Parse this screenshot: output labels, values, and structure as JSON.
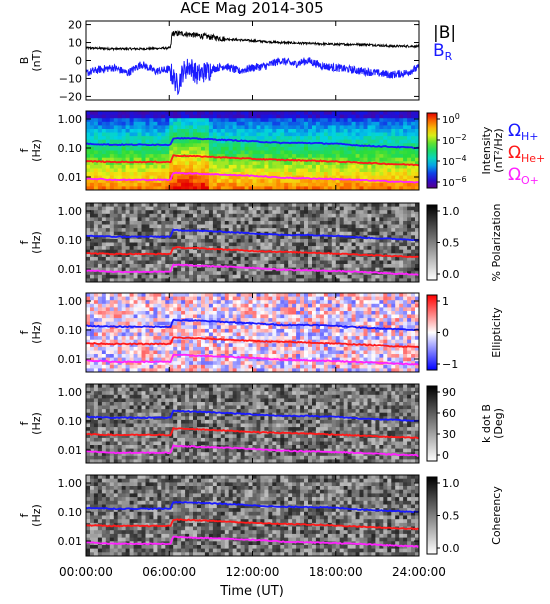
{
  "chart_data": {
    "type": "line",
    "title": "ACE Mag 2014-305",
    "xlabel": "Time (UT)",
    "x_ticks": [
      "00:00:00",
      "06:00:00",
      "12:00:00",
      "18:00:00",
      "24:00:00"
    ],
    "xlim_hours": [
      0,
      24
    ],
    "gyro_frequency_hz": {
      "t_hours": [
        0,
        2,
        4,
        6.1,
        6.3,
        8,
        10,
        12,
        14,
        16,
        18,
        20,
        22,
        24
      ],
      "H+": [
        0.14,
        0.13,
        0.13,
        0.13,
        0.22,
        0.21,
        0.19,
        0.17,
        0.15,
        0.15,
        0.14,
        0.12,
        0.11,
        0.1
      ],
      "He+": [
        0.035,
        0.033,
        0.033,
        0.033,
        0.055,
        0.052,
        0.047,
        0.042,
        0.039,
        0.037,
        0.034,
        0.031,
        0.028,
        0.026
      ],
      "O+": [
        0.009,
        0.008,
        0.008,
        0.008,
        0.014,
        0.013,
        0.012,
        0.011,
        0.0095,
        0.009,
        0.0085,
        0.0078,
        0.007,
        0.0065
      ]
    },
    "field_colors": {
      "H+": "#1a1aff",
      "He+": "#ff1a1a",
      "O+": "#ff22ff"
    },
    "panels": [
      {
        "ylabel": "B",
        "yunit": "(nT)",
        "yticks": [
          "20",
          "10",
          "0",
          "−10",
          "−20"
        ],
        "ylim": [
          -22,
          22
        ],
        "series": [
          {
            "name": "|B|",
            "color": "#000000",
            "t_hours": [
              0,
              2,
              4,
              6.1,
              6.2,
              7,
              8,
              9,
              10,
              12,
              14,
              16,
              18,
              20,
              22,
              24
            ],
            "values": [
              7,
              6.5,
              6.5,
              7,
              15,
              15,
              14,
              13,
              12,
              11,
              10,
              9.5,
              9,
              9,
              8,
              8
            ]
          },
          {
            "name": "B",
            "name_sub": "R",
            "color": "#1a1aff",
            "t_hours": [
              0,
              1,
              2,
              3,
              4,
              5,
              6,
              6.2,
              6.6,
              7,
              7.5,
              8,
              9,
              10,
              11,
              12,
              13,
              14,
              15,
              16,
              17,
              18,
              19,
              20,
              21,
              22,
              23,
              24
            ],
            "values": [
              -7,
              -5,
              -4,
              -7,
              -2,
              -6,
              -5,
              -8,
              -14,
              -6,
              -3,
              -8,
              -5,
              -3,
              -6,
              -4,
              -3,
              0,
              -2,
              0,
              -3,
              -4,
              -5,
              -6,
              -7,
              -8,
              -7,
              -4
            ]
          }
        ]
      },
      {
        "type": "heatmap",
        "ylabel": "f",
        "yunit": "(Hz)",
        "yticks": [
          "1.00",
          "0.10",
          "0.01"
        ],
        "colorbar_label": "Intensity",
        "colorbar_unit": "(nT²/Hz)",
        "colorbar_ticks": [
          {
            "base": "10",
            "exp": "0"
          },
          {
            "base": "10",
            "exp": "−2"
          },
          {
            "base": "10",
            "exp": "−4"
          },
          {
            "base": "10",
            "exp": "−6"
          }
        ],
        "colormap": "rainbow"
      },
      {
        "type": "heatmap",
        "ylabel": "f",
        "yunit": "(Hz)",
        "yticks": [
          "1.00",
          "0.10",
          "0.01"
        ],
        "colorbar_label": "% Polarization",
        "colorbar_ticks": [
          "1.0",
          "0.5",
          "0.0"
        ],
        "colormap": "gray"
      },
      {
        "type": "heatmap",
        "ylabel": "f",
        "yunit": "(Hz)",
        "yticks": [
          "1.00",
          "0.10",
          "0.01"
        ],
        "colorbar_label": "Ellipticity",
        "colorbar_ticks": [
          "1",
          "0",
          "−1"
        ],
        "colormap": "red-white-blue"
      },
      {
        "type": "heatmap",
        "ylabel": "f",
        "yunit": "(Hz)",
        "yticks": [
          "1.00",
          "0.10",
          "0.01"
        ],
        "colorbar_label": "k dot B",
        "colorbar_unit": "(Deg)",
        "colorbar_ticks": [
          "90",
          "60",
          "30",
          "0"
        ],
        "colormap": "gray"
      },
      {
        "type": "heatmap",
        "ylabel": "f",
        "yunit": "(Hz)",
        "yticks": [
          "1.00",
          "0.10",
          "0.01"
        ],
        "colorbar_label": "Coherency",
        "colorbar_ticks": [
          "1.0",
          "0.5",
          "0.0"
        ],
        "colormap": "gray"
      }
    ],
    "legend_gyro": [
      {
        "symbol": "Ω",
        "sub": "H+",
        "color": "#1a1aff"
      },
      {
        "symbol": "Ω",
        "sub": "He+",
        "color": "#ff1a1a"
      },
      {
        "symbol": "Ω",
        "sub": "O+",
        "color": "#ff22ff"
      }
    ]
  }
}
